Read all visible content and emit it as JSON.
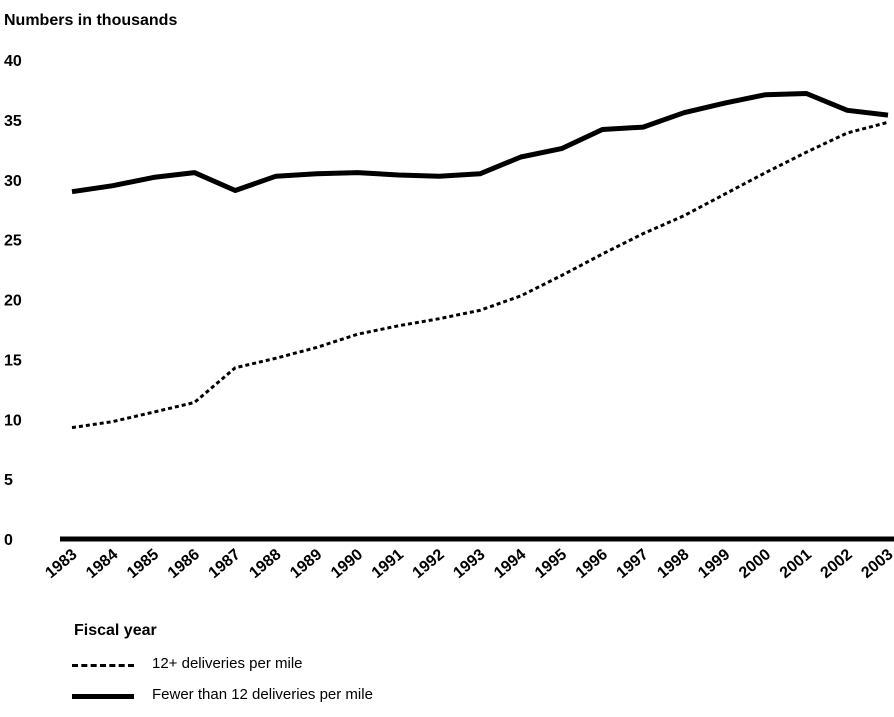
{
  "chart_data": {
    "type": "line",
    "ylabel": "Numbers in thousands",
    "xlabel": "Fiscal year",
    "ylim": [
      0,
      40
    ],
    "yticks": [
      "0",
      "5",
      "10",
      "15",
      "20",
      "25",
      "30",
      "35",
      "40"
    ],
    "x": [
      "1983",
      "1984",
      "1985",
      "1986",
      "1987",
      "1988",
      "1989",
      "1990",
      "1991",
      "1992",
      "1993",
      "1994",
      "1995",
      "1996",
      "1997",
      "1998",
      "1999",
      "2000",
      "2001",
      "2002",
      "2003"
    ],
    "series": [
      {
        "name": "12+ deliveries per mile",
        "style": "dashed",
        "values": [
          9.3,
          9.8,
          10.6,
          11.4,
          14.3,
          15.1,
          16.0,
          17.1,
          17.8,
          18.4,
          19.1,
          20.3,
          22.0,
          23.8,
          25.5,
          27.0,
          28.8,
          30.6,
          32.3,
          33.9,
          34.8
        ]
      },
      {
        "name": "Fewer than 12 deliveries per mile",
        "style": "solid",
        "values": [
          29.0,
          29.5,
          30.2,
          30.6,
          29.1,
          30.3,
          30.5,
          30.6,
          30.4,
          30.3,
          30.5,
          31.9,
          32.6,
          34.2,
          34.4,
          35.6,
          36.4,
          37.1,
          37.2,
          35.8,
          35.4
        ]
      }
    ],
    "grid": false,
    "legend_placement": "bottom-left"
  }
}
